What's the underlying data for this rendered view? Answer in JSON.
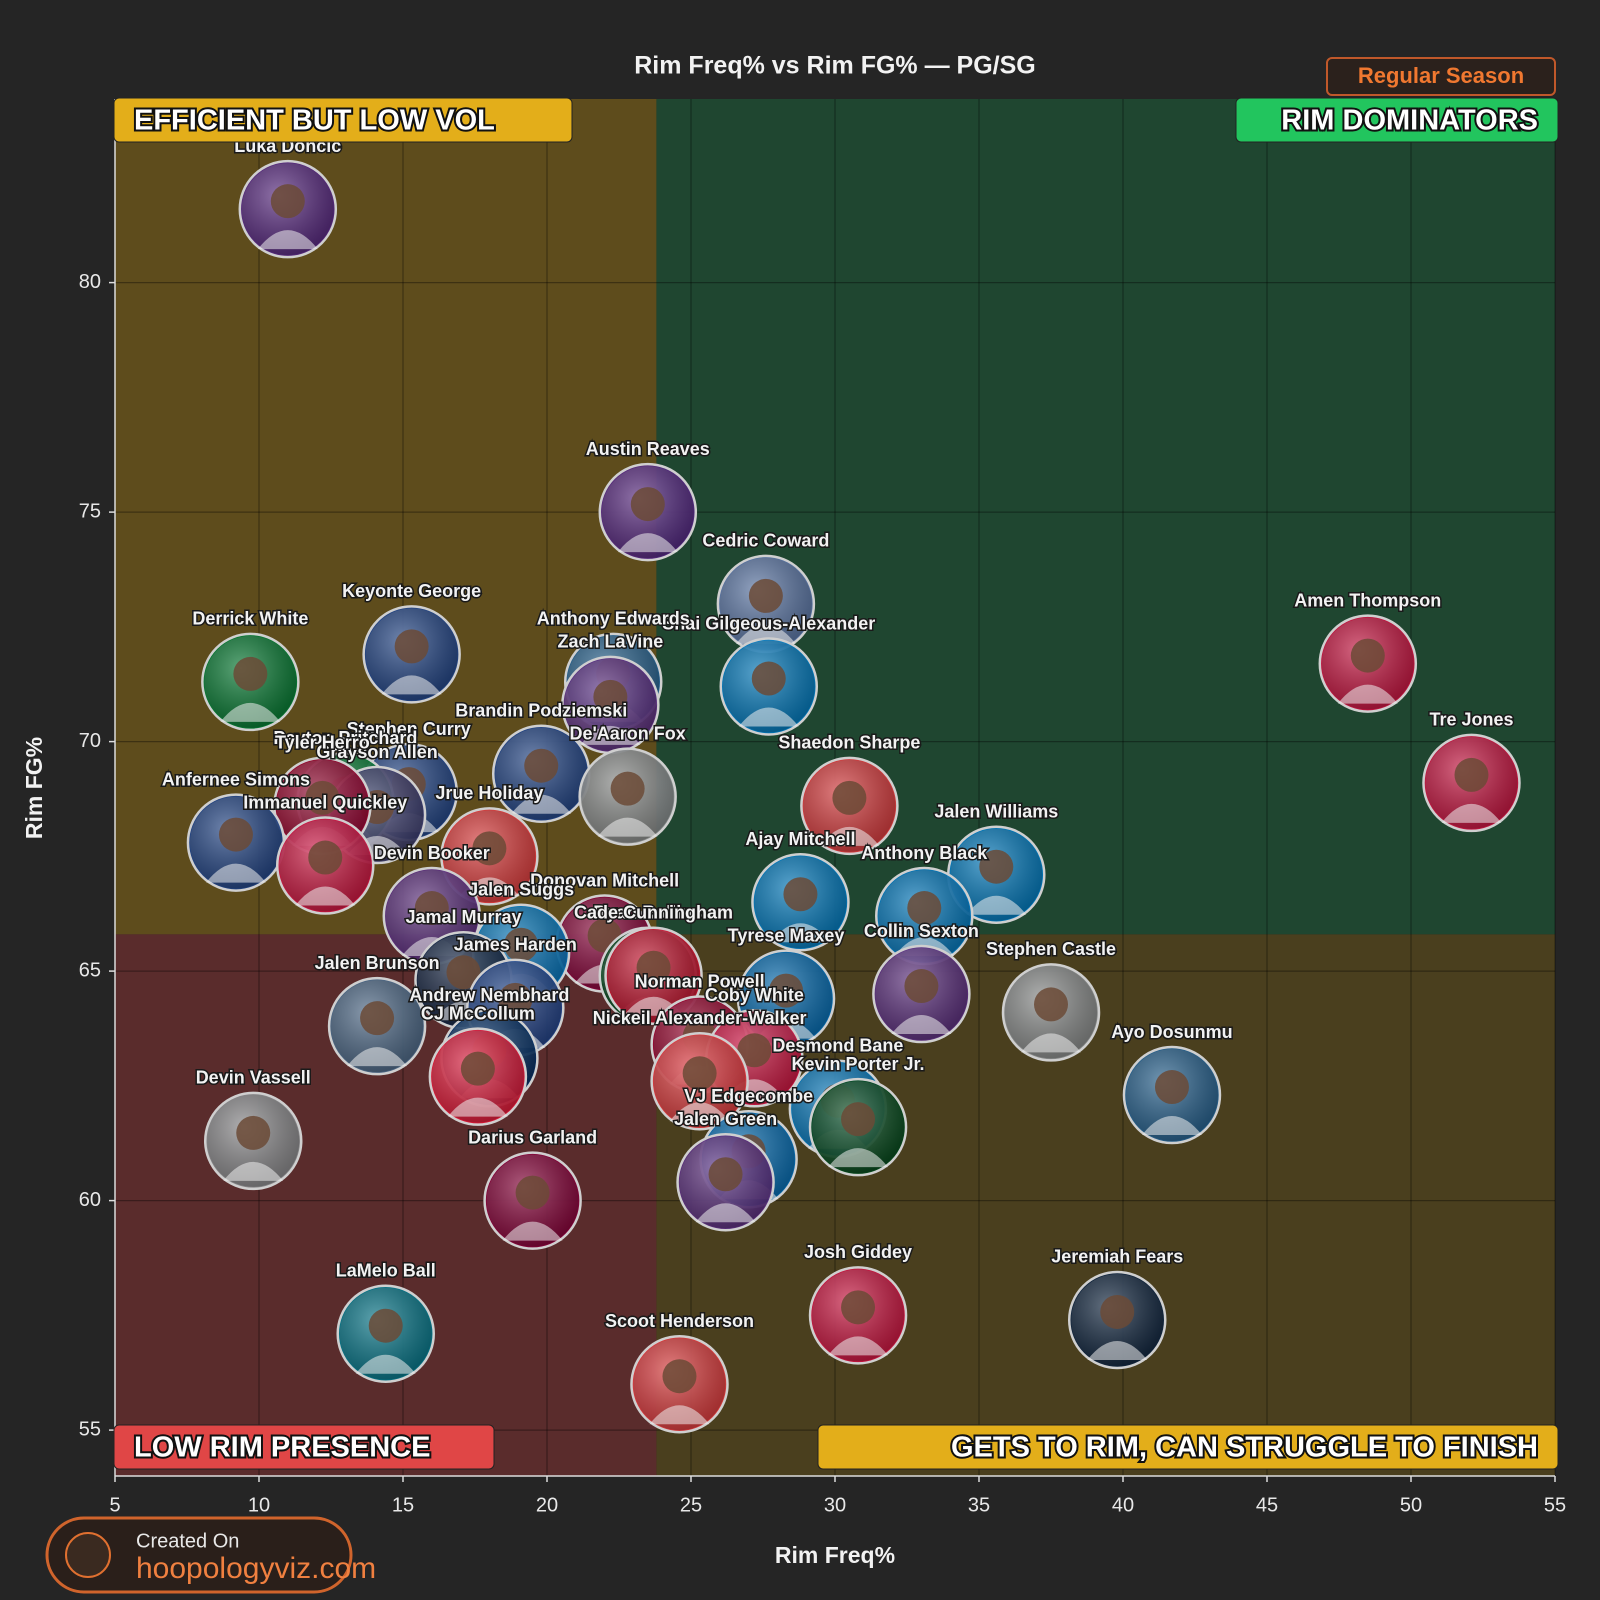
{
  "chart_data": {
    "type": "scatter",
    "title": "Rim Freq% vs Rim FG% — PG/SG",
    "badge": "Regular Season",
    "x_label": "Rim Freq%",
    "y_label": "Rim FG%",
    "xlim": [
      5,
      55
    ],
    "ylim": [
      54,
      84
    ],
    "xticks": [
      5,
      10,
      15,
      20,
      25,
      30,
      35,
      40,
      45,
      50,
      55
    ],
    "yticks": [
      55,
      60,
      65,
      70,
      75,
      80
    ],
    "grid": true,
    "x_split": 23.8,
    "y_split": 65.8,
    "quadrant_labels": {
      "top_left": "EFFICIENT BUT LOW VOL",
      "top_right": "RIM DOMINATORS",
      "bottom_left": "LOW RIM PRESENCE",
      "bottom_right": "GETS TO RIM, CAN STRUGGLE TO FINISH"
    },
    "watermark": {
      "prefix": "Created On",
      "site": "hoopologyviz.com"
    },
    "points": [
      {
        "name": "Luka Dončić",
        "x": 11.0,
        "y": 81.6,
        "color": "#552583"
      },
      {
        "name": "Austin Reaves",
        "x": 23.5,
        "y": 75.0,
        "color": "#552583"
      },
      {
        "name": "Cedric Coward",
        "x": 27.6,
        "y": 73.0,
        "color": "#5d76a9"
      },
      {
        "name": "Shai Gilgeous-Alexander",
        "x": 27.7,
        "y": 71.2,
        "color": "#007ac1"
      },
      {
        "name": "Amen Thompson",
        "x": 48.5,
        "y": 71.7,
        "color": "#ce1141"
      },
      {
        "name": "Tre Jones",
        "x": 52.1,
        "y": 69.1,
        "color": "#ce1141"
      },
      {
        "name": "Keyonte George",
        "x": 15.3,
        "y": 71.9,
        "color": "#1d428a"
      },
      {
        "name": "Derrick White",
        "x": 9.7,
        "y": 71.3,
        "color": "#007a33"
      },
      {
        "name": "Anthony Edwards",
        "x": 22.3,
        "y": 71.3,
        "color": "#236192"
      },
      {
        "name": "Zach LaVine",
        "x": 22.2,
        "y": 70.8,
        "color": "#5a2d81"
      },
      {
        "name": "Stephen Curry",
        "x": 15.2,
        "y": 68.9,
        "color": "#1d428a"
      },
      {
        "name": "Payton Pritchard",
        "x": 13.0,
        "y": 68.7,
        "color": "#007a33"
      },
      {
        "name": "Grayson Allen",
        "x": 14.1,
        "y": 68.4,
        "color": "#3a3a6a"
      },
      {
        "name": "Tyler Herro",
        "x": 12.2,
        "y": 68.6,
        "color": "#98002e"
      },
      {
        "name": "Brandin Podziemski",
        "x": 19.8,
        "y": 69.3,
        "color": "#1d428a"
      },
      {
        "name": "De'Aaron Fox",
        "x": 22.8,
        "y": 68.8,
        "color": "#8a8d8f"
      },
      {
        "name": "Anfernee Simons",
        "x": 9.2,
        "y": 67.8,
        "color": "#1d428a"
      },
      {
        "name": "Immanuel Quickley",
        "x": 12.3,
        "y": 67.3,
        "color": "#ce1141"
      },
      {
        "name": "Jrue Holiday",
        "x": 18.0,
        "y": 67.5,
        "color": "#e03a3e"
      },
      {
        "name": "Shaedon Sharpe",
        "x": 30.5,
        "y": 68.6,
        "color": "#e03a3e"
      },
      {
        "name": "Jalen Williams",
        "x": 35.6,
        "y": 67.1,
        "color": "#007ac1"
      },
      {
        "name": "Ajay Mitchell",
        "x": 28.8,
        "y": 66.5,
        "color": "#007ac1"
      },
      {
        "name": "Anthony Black",
        "x": 33.1,
        "y": 66.2,
        "color": "#0077c0"
      },
      {
        "name": "Devin Booker",
        "x": 16.0,
        "y": 66.2,
        "color": "#5a2d81"
      },
      {
        "name": "Donovan Mitchell",
        "x": 22.0,
        "y": 65.6,
        "color": "#860038"
      },
      {
        "name": "Jalen Suggs",
        "x": 19.1,
        "y": 65.4,
        "color": "#0077c0"
      },
      {
        "name": "Ryan Rollins",
        "x": 23.5,
        "y": 64.9,
        "color": "#00471b"
      },
      {
        "name": "Tyrese Maxey",
        "x": 28.3,
        "y": 64.4,
        "color": "#006bb6"
      },
      {
        "name": "Collin Sexton",
        "x": 33.0,
        "y": 64.5,
        "color": "#5a2d81"
      },
      {
        "name": "Jamal Murray",
        "x": 17.1,
        "y": 64.8,
        "color": "#0e2240"
      },
      {
        "name": "Jalen Brunson",
        "x": 14.1,
        "y": 63.8,
        "color": "#4a6a8a"
      },
      {
        "name": "James Harden",
        "x": 18.9,
        "y": 64.2,
        "color": "#1d428a"
      },
      {
        "name": "Cade Cunningham",
        "x": 23.7,
        "y": 64.9,
        "color": "#c8102e"
      },
      {
        "name": "Stephen Castle",
        "x": 37.5,
        "y": 64.1,
        "color": "#8a8d8f"
      },
      {
        "name": "Andrew Nembhard",
        "x": 18.0,
        "y": 63.1,
        "color": "#002d62"
      },
      {
        "name": "Norman Powell",
        "x": 25.3,
        "y": 63.4,
        "color": "#98002e"
      },
      {
        "name": "CJ McCollum",
        "x": 17.6,
        "y": 62.7,
        "color": "#e31837"
      },
      {
        "name": "Coby White",
        "x": 27.2,
        "y": 63.1,
        "color": "#ce1141"
      },
      {
        "name": "Nickeil Alexander-Walker",
        "x": 25.3,
        "y": 62.6,
        "color": "#e03a3e"
      },
      {
        "name": "Ayo Dosunmu",
        "x": 41.7,
        "y": 62.3,
        "color": "#236192"
      },
      {
        "name": "Desmond Bane",
        "x": 30.1,
        "y": 62.0,
        "color": "#0077c0"
      },
      {
        "name": "Devin Vassell",
        "x": 9.8,
        "y": 61.3,
        "color": "#8a8d8f"
      },
      {
        "name": "Kevin Porter Jr.",
        "x": 30.8,
        "y": 61.6,
        "color": "#00471b"
      },
      {
        "name": "VJ Edgecombe",
        "x": 27.0,
        "y": 60.9,
        "color": "#006bb6"
      },
      {
        "name": "Darius Garland",
        "x": 19.5,
        "y": 60.0,
        "color": "#860038"
      },
      {
        "name": "Jalen Green",
        "x": 26.2,
        "y": 60.4,
        "color": "#5a2d81"
      },
      {
        "name": "Josh Giddey",
        "x": 30.8,
        "y": 57.5,
        "color": "#ce1141"
      },
      {
        "name": "Jeremiah Fears",
        "x": 39.8,
        "y": 57.4,
        "color": "#0c2340"
      },
      {
        "name": "LaMelo Ball",
        "x": 14.4,
        "y": 57.1,
        "color": "#00788c"
      },
      {
        "name": "Scoot Henderson",
        "x": 24.6,
        "y": 56.0,
        "color": "#e03a3e"
      }
    ]
  }
}
